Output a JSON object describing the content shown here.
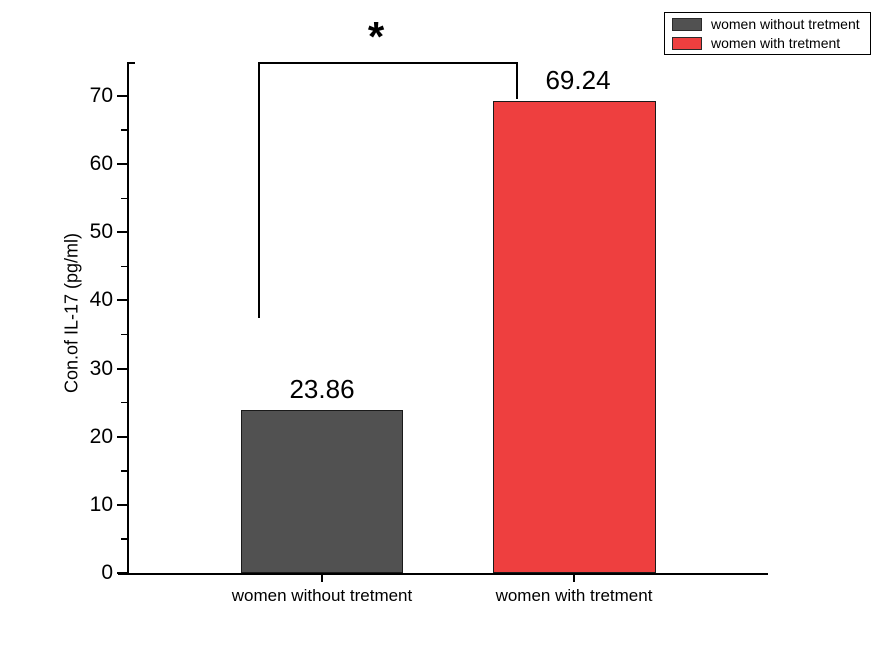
{
  "figure": {
    "background_color": "#ffffff",
    "axis_color": "#000000"
  },
  "legend": {
    "position": "top-right",
    "items": [
      {
        "label": "women without tretment",
        "color": "#515151"
      },
      {
        "label": "women with tretment",
        "color": "#ee3f3f"
      }
    ]
  },
  "chart_data": {
    "type": "bar",
    "title": "",
    "categories": [
      "women without tretment",
      "women with tretment"
    ],
    "values": [
      23.86,
      69.24
    ],
    "value_labels": [
      "23.86",
      "69.24"
    ],
    "bar_colors": [
      "#515151",
      "#ee3f3f"
    ],
    "xlabel": "",
    "ylabel": "Con.of IL-17 (pg/ml)",
    "ylim": [
      0,
      75
    ],
    "yticks": [
      0,
      10,
      20,
      30,
      40,
      50,
      60,
      70
    ],
    "minor_ytick_start": 5,
    "minor_ytick_step": 10,
    "grid": false,
    "legend_position": "top-right",
    "annotations": [
      {
        "type": "significance-bracket",
        "label": "*",
        "between": [
          "women without tretment",
          "women with tretment"
        ]
      }
    ]
  }
}
